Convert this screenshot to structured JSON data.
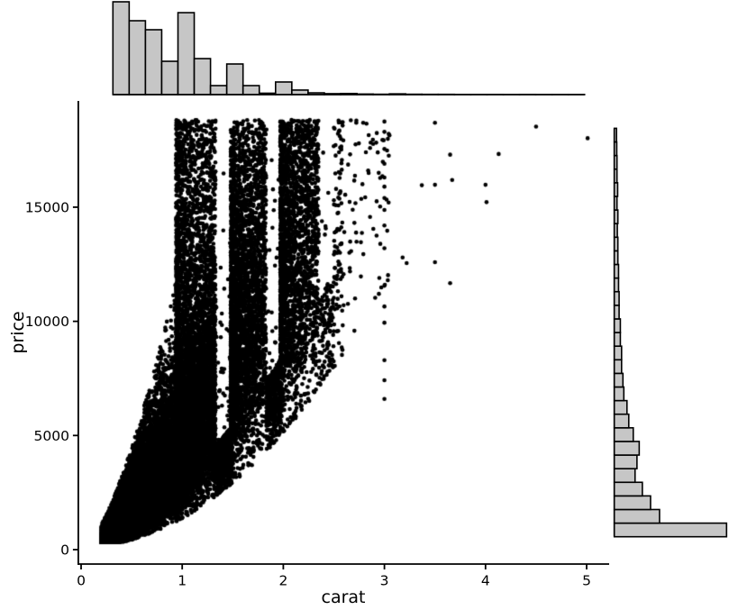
{
  "figure": {
    "background": "#ffffff",
    "point_color": "#000000",
    "histogram_fill": "#c6c6c6",
    "histogram_stroke": "#000000",
    "axis_color": "#000000",
    "text_color": "#000000"
  },
  "chart_data": {
    "type": "scatter",
    "subtype": "scatter-with-marginal-histograms",
    "title": "",
    "xlabel": "carat",
    "ylabel": "price",
    "xlim": [
      0,
      5.2
    ],
    "ylim": [
      0,
      19650
    ],
    "grid": false,
    "legend": false,
    "x_ticks": [
      0,
      1,
      2,
      3,
      4,
      5
    ],
    "x_tick_labels": [
      "0",
      "1",
      "2",
      "3",
      "4",
      "5"
    ],
    "y_ticks": [
      0,
      5000,
      10000,
      15000
    ],
    "y_tick_labels": [
      "0",
      "5000",
      "10000",
      "15000"
    ],
    "marker": {
      "color": "#000000",
      "radius_px": 2.3
    },
    "marginal_top_histogram": {
      "variable": "carat",
      "orientation": "vertical",
      "bin_start": 0.31,
      "bin_width": 0.161,
      "n_bins": 29,
      "rel_heights": [
        1.0,
        0.796,
        0.699,
        0.359,
        0.883,
        0.388,
        0.097,
        0.33,
        0.097,
        0.015,
        0.136,
        0.049,
        0.019,
        0.01,
        0.012,
        0.006,
        0.004,
        0.008,
        0.004,
        0.003,
        0.003,
        0.002,
        0.002,
        0.002,
        0.001,
        0.002,
        0.001,
        0.001,
        0.001
      ]
    },
    "marginal_right_histogram": {
      "variable": "price",
      "orientation": "horizontal",
      "bin_start": 560,
      "bin_width": 596,
      "n_bins": 30,
      "rel_lengths": [
        1.0,
        0.403,
        0.323,
        0.25,
        0.185,
        0.202,
        0.222,
        0.169,
        0.129,
        0.113,
        0.085,
        0.077,
        0.065,
        0.065,
        0.054,
        0.054,
        0.043,
        0.043,
        0.038,
        0.038,
        0.032,
        0.032,
        0.027,
        0.032,
        0.024,
        0.03,
        0.024,
        0.024,
        0.022,
        0.02
      ]
    },
    "scatter_model": {
      "comment_visual": "dense black cloud; solid vertical bands starting at carat 1.0, 1.5 and 2.0 reaching top; white gaps just below 1.5 and 2.0 at high prices; sparse large-carat outliers",
      "n_points": 42000,
      "x_zones": [
        [
          0.2,
          0.36,
          26
        ],
        [
          0.36,
          0.52,
          20
        ],
        [
          0.52,
          0.68,
          17
        ],
        [
          0.68,
          0.84,
          9
        ],
        [
          0.84,
          0.94,
          3.5
        ],
        [
          0.94,
          1.33,
          22
        ],
        [
          1.33,
          1.48,
          2.2
        ],
        [
          1.48,
          1.83,
          10
        ],
        [
          1.83,
          1.97,
          1.3
        ],
        [
          1.97,
          2.35,
          6.5
        ],
        [
          2.35,
          2.6,
          0.7
        ],
        [
          2.6,
          3.05,
          0.18
        ]
      ],
      "left_skew_zones": [
        [
          0.94,
          1.33
        ],
        [
          1.48,
          1.83
        ],
        [
          1.97,
          2.35
        ]
      ],
      "full_range_zones": [
        [
          0.94,
          1.33
        ],
        [
          1.48,
          1.83
        ],
        [
          1.97,
          2.35
        ]
      ],
      "gap_zones": [
        [
          1.33,
          1.48
        ],
        [
          1.83,
          1.97
        ],
        [
          2.35,
          2.5
        ]
      ],
      "median_price": {
        "base": 4700,
        "exponent": 1.55
      },
      "log_sigma": 0.42,
      "price_min_curve": {
        "a": 1250,
        "exponent": 2,
        "b": 120,
        "floor": 326
      },
      "price_max": 18823,
      "hi_fill_prob": 0.25,
      "hi_fill_low_factor": 0.55,
      "gap_cap_factor": 0.62,
      "gap_escape_prob": 0.05,
      "mid_cap_factor": 2.8,
      "seed": 20240601
    },
    "outlier_points": [
      [
        2.79,
        18700
      ],
      [
        3.0,
        18750
      ],
      [
        3.0,
        18300
      ],
      [
        3.0,
        17550
      ],
      [
        3.0,
        16900
      ],
      [
        3.0,
        16300
      ],
      [
        3.0,
        15900
      ],
      [
        3.0,
        15400
      ],
      [
        3.0,
        14880
      ],
      [
        3.0,
        14200
      ],
      [
        3.0,
        13200
      ],
      [
        3.0,
        11560
      ],
      [
        3.0,
        10650
      ],
      [
        3.0,
        9940
      ],
      [
        3.0,
        8300
      ],
      [
        3.0,
        7420
      ],
      [
        3.0,
        6600
      ],
      [
        3.05,
        18150
      ],
      [
        3.18,
        12800
      ],
      [
        3.22,
        12550
      ],
      [
        3.37,
        15960
      ],
      [
        3.5,
        18700
      ],
      [
        3.5,
        15980
      ],
      [
        3.5,
        12590
      ],
      [
        3.65,
        17300
      ],
      [
        3.65,
        11670
      ],
      [
        3.67,
        16190
      ],
      [
        4.0,
        15980
      ],
      [
        4.01,
        15220
      ],
      [
        4.13,
        17330
      ],
      [
        4.5,
        18530
      ],
      [
        5.01,
        18020
      ]
    ]
  }
}
